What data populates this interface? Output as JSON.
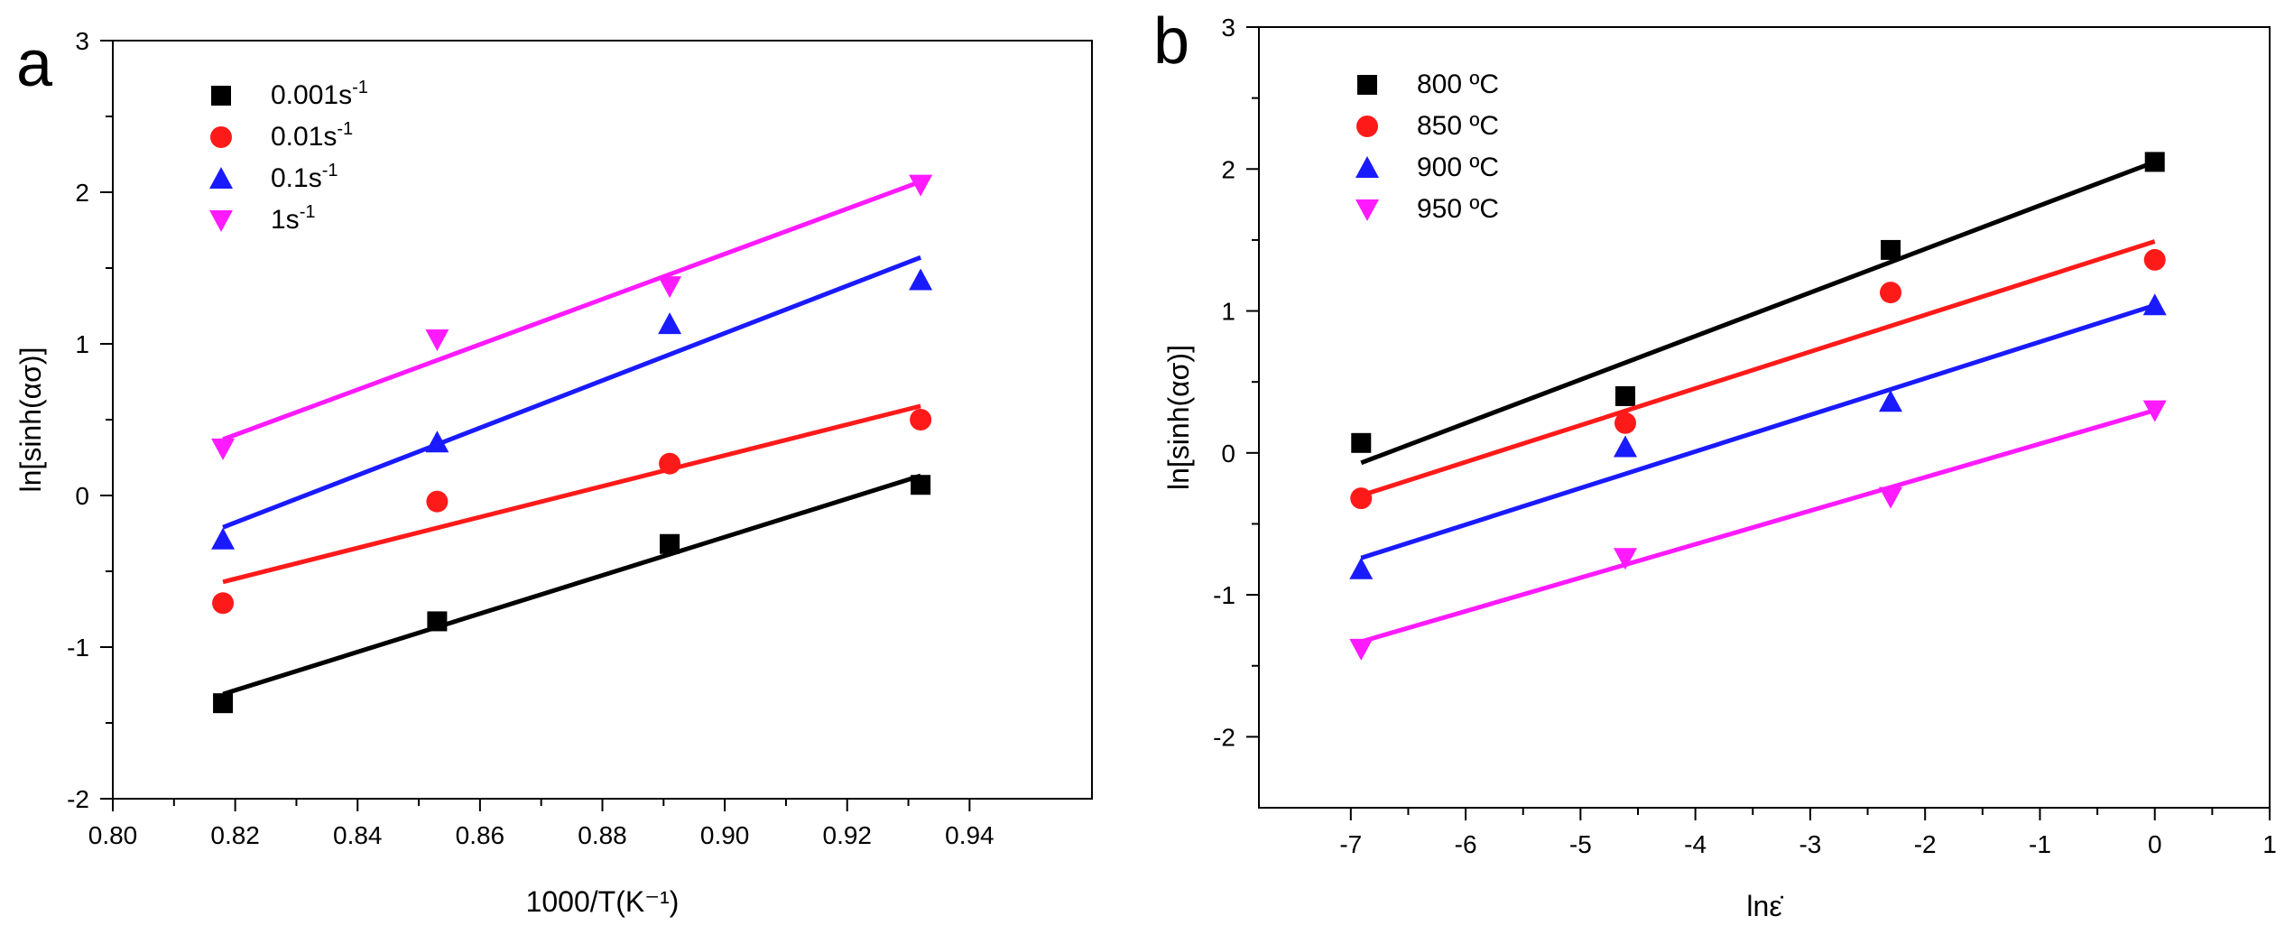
{
  "figure": {
    "panels": [
      "a",
      "b"
    ]
  },
  "chart_data": [
    {
      "panel": "a",
      "type": "scatter",
      "fit": "linear",
      "xlabel": "1000/T(K⁻¹)",
      "ylabel": "ln[sinh(ασ)]",
      "xlim": [
        0.8,
        0.96
      ],
      "ylim": [
        -2,
        3
      ],
      "xticks": [
        0.8,
        0.82,
        0.84,
        0.86,
        0.88,
        0.9,
        0.92,
        0.94
      ],
      "xtick_labels": [
        "0.80",
        "0.82",
        "0.84",
        "0.86",
        "0.88",
        "0.90",
        "0.92",
        "0.94"
      ],
      "yticks": [
        -2,
        -1,
        0,
        1,
        2,
        3
      ],
      "ytick_labels": [
        "-2",
        "-1",
        "0",
        "1",
        "2",
        "3"
      ],
      "legend_position": "top-left",
      "x": [
        0.818,
        0.853,
        0.891,
        0.932
      ],
      "series": [
        {
          "name": "0.001s",
          "sup": "-1",
          "color": "#000000",
          "marker": "square",
          "values": [
            -1.37,
            -0.83,
            -0.32,
            0.07
          ],
          "fit": [
            -1.31,
            0.13
          ]
        },
        {
          "name": "0.01s",
          "sup": "-1",
          "color": "#ff1a1a",
          "marker": "circle",
          "values": [
            -0.71,
            -0.04,
            0.21,
            0.5
          ],
          "fit": [
            -0.57,
            0.59
          ]
        },
        {
          "name": "0.1s",
          "sup": "-1",
          "color": "#1a1aff",
          "marker": "triangle-up",
          "values": [
            -0.29,
            0.35,
            1.13,
            1.42
          ],
          "fit": [
            -0.21,
            1.57
          ]
        },
        {
          "name": "1s",
          "sup": "-1",
          "color": "#ff1aff",
          "marker": "triangle-down",
          "values": [
            0.31,
            1.03,
            1.38,
            2.05
          ],
          "fit": [
            0.37,
            2.07
          ]
        }
      ]
    },
    {
      "panel": "b",
      "type": "scatter",
      "fit": "linear",
      "xlabel": "lnε̇",
      "ylabel": "ln[sinh(ασ)]",
      "xlim": [
        -7.8,
        1
      ],
      "ylim": [
        -2.5,
        3
      ],
      "xticks": [
        -7,
        -6,
        -5,
        -4,
        -3,
        -2,
        -1,
        0,
        1
      ],
      "xtick_labels": [
        "-7",
        "-6",
        "-5",
        "-4",
        "-3",
        "-2",
        "-1",
        "0",
        "1"
      ],
      "yticks": [
        -2,
        -1,
        0,
        1,
        2,
        3
      ],
      "ytick_labels": [
        "-2",
        "-1",
        "0",
        "1",
        "2",
        "3"
      ],
      "legend_position": "top-left",
      "x": [
        -6.91,
        -4.61,
        -2.3,
        0.0
      ],
      "series": [
        {
          "name": "800 ºC",
          "color": "#000000",
          "marker": "square",
          "values": [
            0.07,
            0.4,
            1.43,
            2.05
          ],
          "fit": [
            -0.07,
            2.05
          ]
        },
        {
          "name": "850 ºC",
          "color": "#ff1a1a",
          "marker": "circle",
          "values": [
            -0.32,
            0.21,
            1.13,
            1.36
          ],
          "fit": [
            -0.3,
            1.49
          ]
        },
        {
          "name": "900 ºC",
          "color": "#1a1aff",
          "marker": "triangle-up",
          "values": [
            -0.82,
            0.04,
            0.36,
            1.04
          ],
          "fit": [
            -0.74,
            1.04
          ]
        },
        {
          "name": "950 ºC",
          "color": "#ff1aff",
          "marker": "triangle-down",
          "values": [
            -1.38,
            -0.74,
            -0.31,
            0.3
          ],
          "fit": [
            -1.33,
            0.3
          ]
        }
      ]
    }
  ]
}
